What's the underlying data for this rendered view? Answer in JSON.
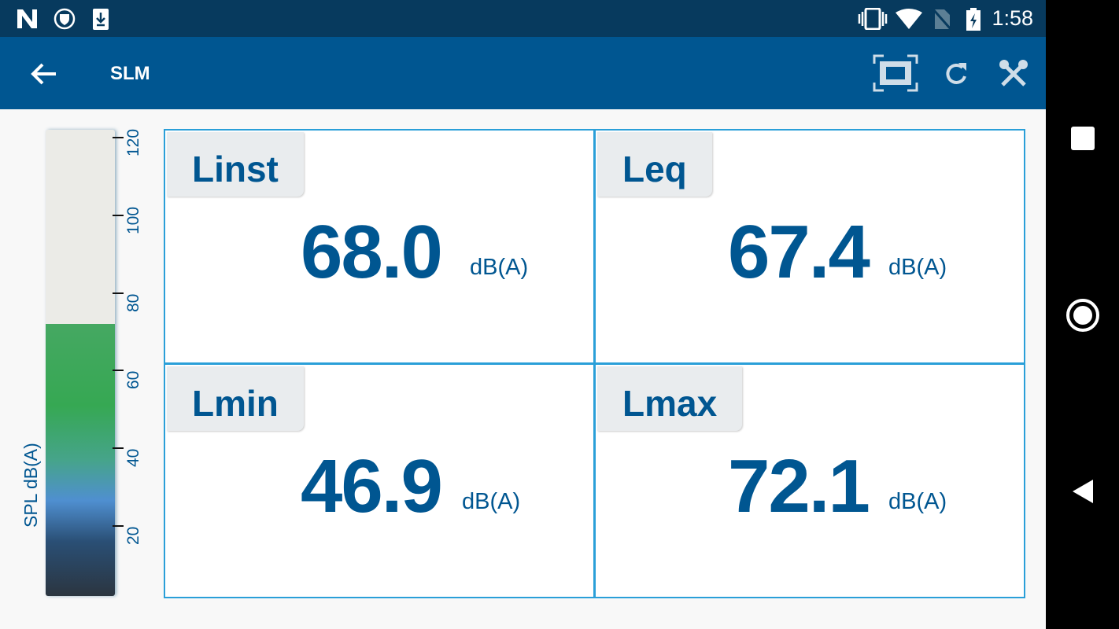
{
  "status_bar": {
    "time": "1:58",
    "icons": [
      "n-notification-icon",
      "shield-icon",
      "download-icon",
      "vibrate-icon",
      "wifi-icon",
      "no-sim-icon",
      "battery-charging-icon"
    ]
  },
  "app_bar": {
    "title": "SLM",
    "icons": [
      "back-arrow-icon",
      "fullscreen-icon",
      "refresh-icon",
      "settings-tools-icon"
    ]
  },
  "meter": {
    "axis_label": "SPL dB(A)",
    "ticks": [
      "20",
      "40",
      "60",
      "80",
      "100",
      "120"
    ],
    "level_db": 72,
    "range": [
      2,
      122
    ]
  },
  "panels": [
    {
      "label": "Linst",
      "value": "68.0",
      "unit": "dB(A)"
    },
    {
      "label": "Leq",
      "value": "67.4",
      "unit": "dB(A)"
    },
    {
      "label": "Lmin",
      "value": "46.9",
      "unit": "dB(A)"
    },
    {
      "label": "Lmax",
      "value": "72.1",
      "unit": "dB(A)"
    }
  ],
  "colors": {
    "brand": "#005691",
    "status": "#073a5e",
    "border": "#2a9fd8"
  }
}
